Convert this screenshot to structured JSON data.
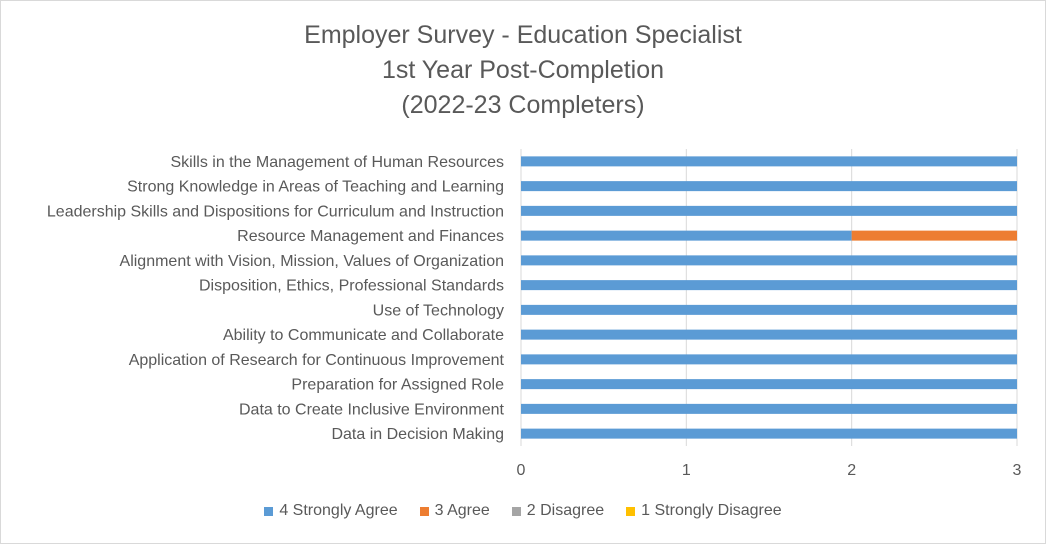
{
  "chart_data": {
    "type": "bar",
    "orientation": "horizontal",
    "stacked": true,
    "title": [
      "Employer Survey - Education Specialist",
      "1st Year Post-Completion",
      "(2022-23 Completers)"
    ],
    "categories": [
      "Skills in the Management of Human Resources",
      "Strong Knowledge in Areas of Teaching and Learning",
      "Leadership Skills and Dispositions for Curriculum and Instruction",
      "Resource Management and Finances",
      "Alignment with Vision, Mission, Values of Organization",
      "Disposition, Ethics, Professional Standards",
      "Use of Technology",
      "Ability to Communicate and Collaborate",
      "Application of Research for Continuous Improvement",
      "Preparation for Assigned Role",
      "Data to Create Inclusive Environment",
      "Data in Decision Making"
    ],
    "series": [
      {
        "name": "4 Strongly Agree",
        "color": "#5b9bd5",
        "values": [
          3,
          3,
          3,
          2,
          3,
          3,
          3,
          3,
          3,
          3,
          3,
          3
        ]
      },
      {
        "name": "3 Agree",
        "color": "#ed7d31",
        "values": [
          0,
          0,
          0,
          1,
          0,
          0,
          0,
          0,
          0,
          0,
          0,
          0
        ]
      },
      {
        "name": "2 Disagree",
        "color": "#a5a5a5",
        "values": [
          0,
          0,
          0,
          0,
          0,
          0,
          0,
          0,
          0,
          0,
          0,
          0
        ]
      },
      {
        "name": "1 Strongly Disagree",
        "color": "#ffc000",
        "values": [
          0,
          0,
          0,
          0,
          0,
          0,
          0,
          0,
          0,
          0,
          0,
          0
        ]
      }
    ],
    "xlim": [
      0,
      3
    ],
    "xticks": [
      "0",
      "1",
      "2",
      "3"
    ],
    "grid": true,
    "legend_position": "bottom"
  }
}
